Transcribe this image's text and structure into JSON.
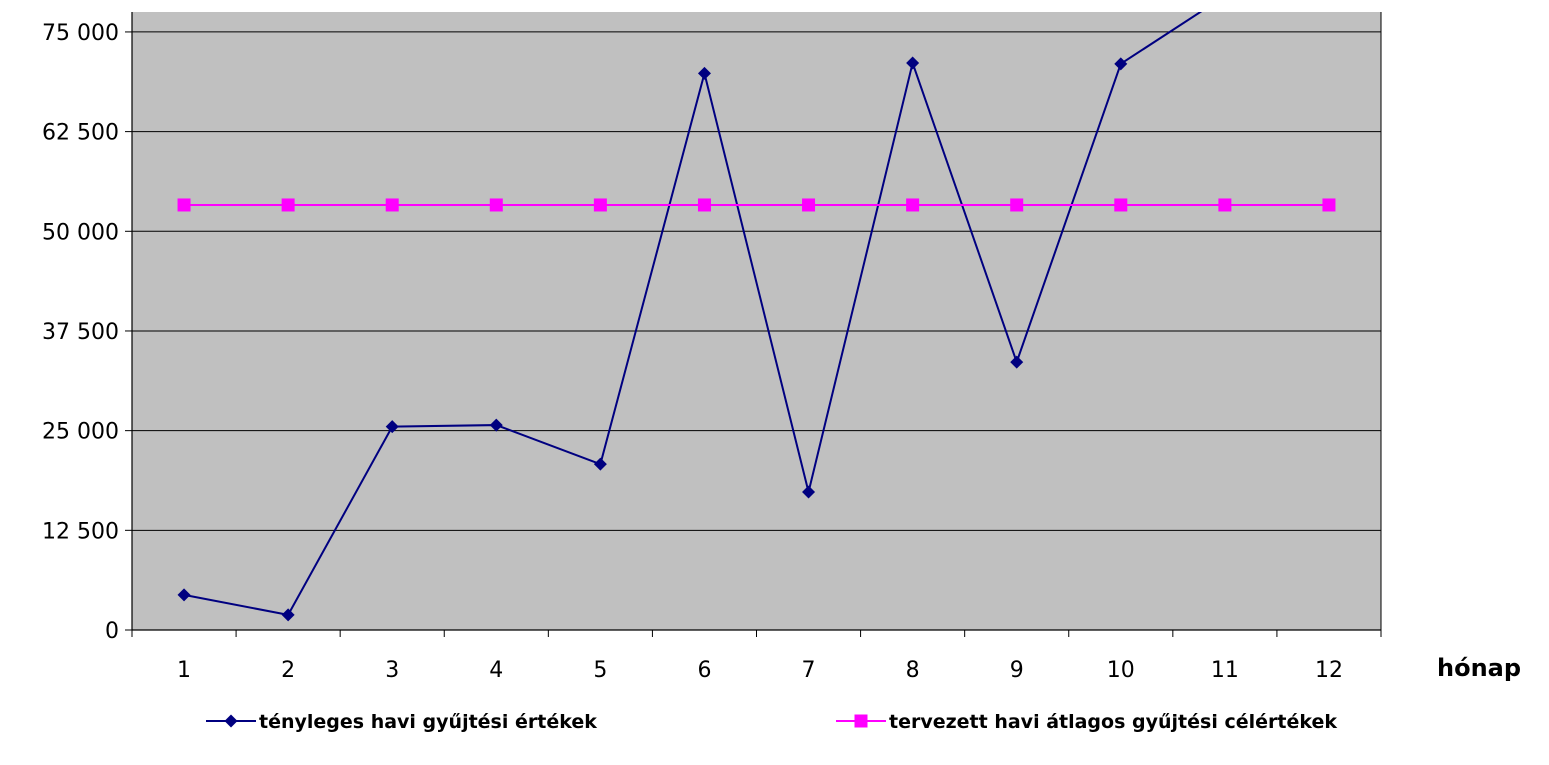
{
  "chart_data": {
    "type": "line",
    "title": "",
    "xlabel": "hónap",
    "ylabel": "",
    "categories": [
      "1",
      "2",
      "3",
      "4",
      "5",
      "6",
      "7",
      "8",
      "9",
      "10",
      "11",
      "12"
    ],
    "ylim": [
      0,
      77500
    ],
    "y_ticks": [
      "0",
      "12 500",
      "25 000",
      "37 500",
      "50 000",
      "62 500",
      "75 000"
    ],
    "y_tick_values": [
      0,
      12500,
      25000,
      37500,
      50000,
      62500,
      75000
    ],
    "grid": true,
    "plot_background": "#C0C0C0",
    "legend_position": "bottom",
    "series": [
      {
        "name": "tényleges havi gyűjtési értékek",
        "color": "#000080",
        "marker": "diamond",
        "values": [
          4400,
          1900,
          25500,
          25700,
          20800,
          69800,
          17300,
          71100,
          33600,
          71000,
          79500,
          null
        ]
      },
      {
        "name": "tervezett havi átlagos gyűjtési célértékek",
        "color": "#FF00FF",
        "marker": "square",
        "values": [
          53300,
          53300,
          53300,
          53300,
          53300,
          53300,
          53300,
          53300,
          53300,
          53300,
          53300,
          53300
        ]
      }
    ]
  }
}
